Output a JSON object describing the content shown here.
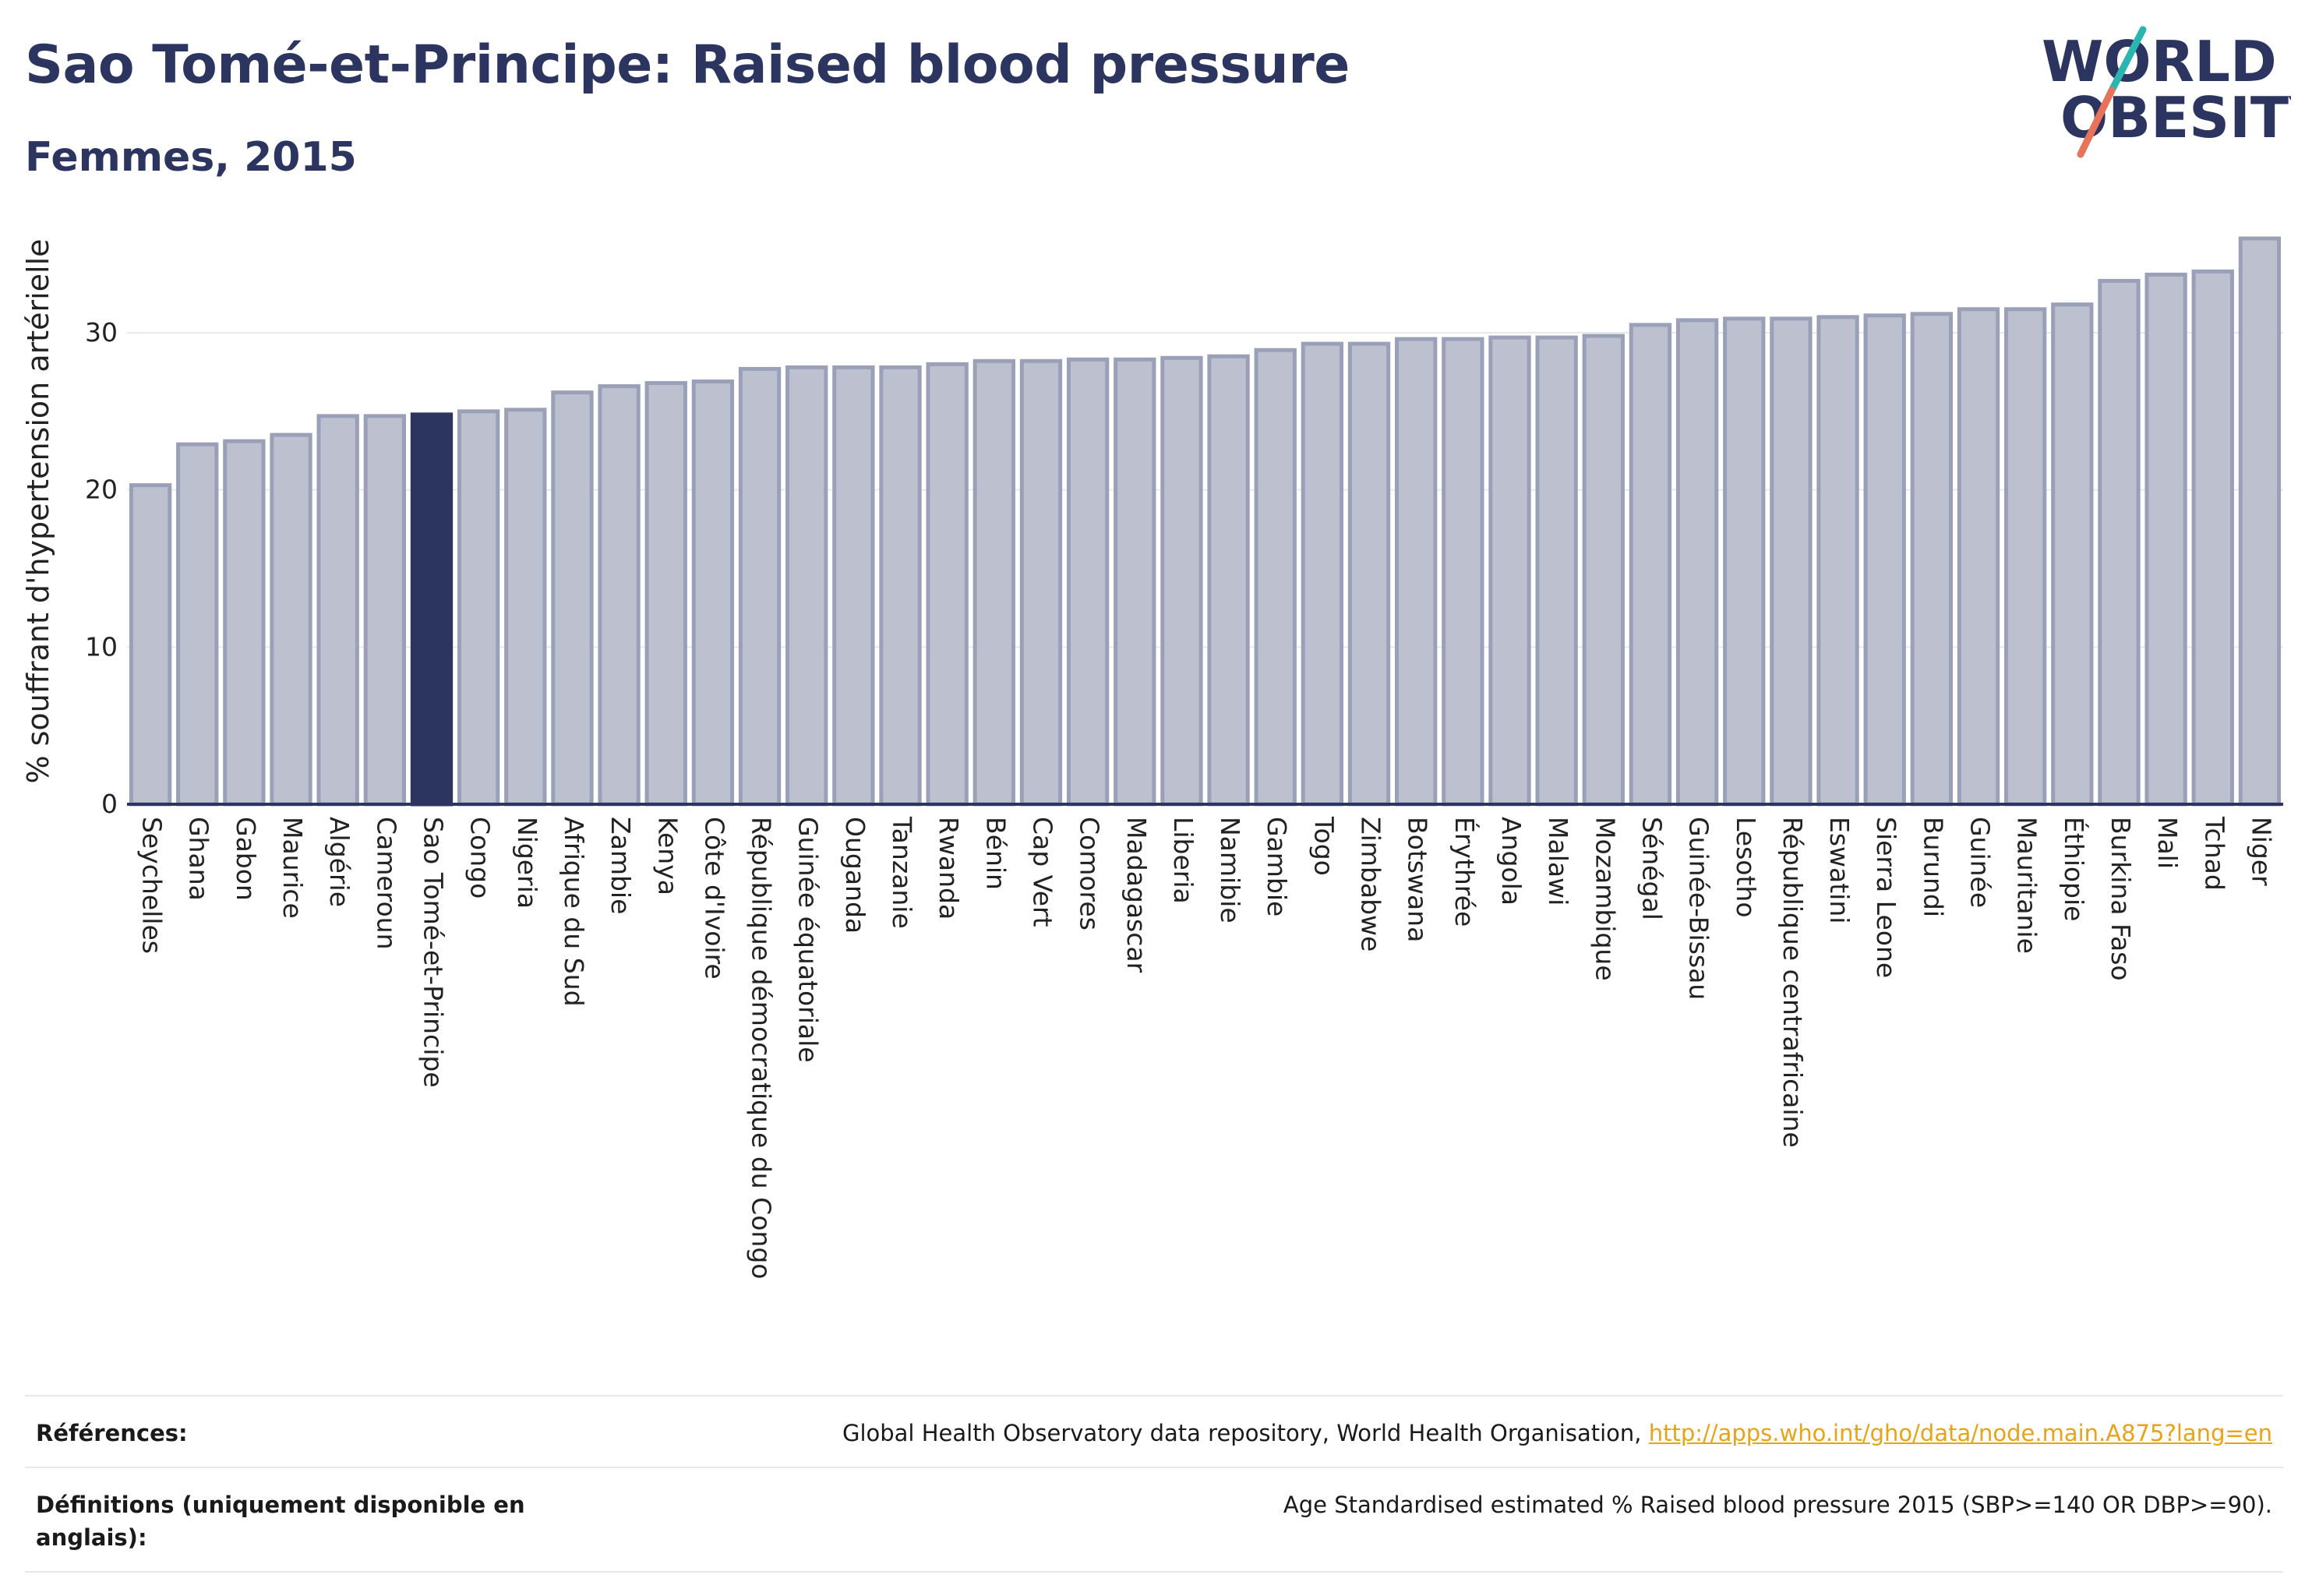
{
  "header": {
    "title": "Sao Tomé-et-Principe: Raised blood pressure",
    "subtitle": "Femmes, 2015"
  },
  "logo": {
    "line1": "WORLD",
    "line2": "OBESITY",
    "colors": {
      "text": "#2c3560",
      "slash_top": "#2bb5b0",
      "slash_bottom": "#e8735a"
    }
  },
  "colors": {
    "bar_fill": "#bcc0cf",
    "bar_stroke": "#9aa0b8",
    "highlight": "#2c3560",
    "gridline": "#e8e9ef",
    "axis": "#2c3560"
  },
  "chart_data": {
    "type": "bar",
    "ylabel": "% souffrant d'hypertension artérielle",
    "ylim": [
      0,
      36
    ],
    "yticks": [
      0,
      10,
      20,
      30
    ],
    "grid": true,
    "highlight": "Sao Tomé-et-Principe",
    "categories": [
      "Seychelles",
      "Ghana",
      "Gabon",
      "Maurice",
      "Algérie",
      "Cameroun",
      "Sao Tomé-et-Principe",
      "Congo",
      "Nigeria",
      "Afrique du Sud",
      "Zambie",
      "Kenya",
      "Côte d'Ivoire",
      "République démocratique du Congo",
      "Guinée équatoriale",
      "Ouganda",
      "Tanzanie",
      "Rwanda",
      "Bénin",
      "Cap Vert",
      "Comores",
      "Madagascar",
      "Liberia",
      "Namibie",
      "Gambie",
      "Togo",
      "Zimbabwe",
      "Botswana",
      "Érythrée",
      "Angola",
      "Malawi",
      "Mozambique",
      "Sénégal",
      "Guinée-Bissau",
      "Lesotho",
      "République centrafricaine",
      "Eswatini",
      "Sierra Leone",
      "Burundi",
      "Guinée",
      "Mauritanie",
      "Éthiopie",
      "Burkina Faso",
      "Mali",
      "Tchad",
      "Niger"
    ],
    "values": [
      20.3,
      22.9,
      23.1,
      23.5,
      24.7,
      24.7,
      24.8,
      25.0,
      25.1,
      26.2,
      26.6,
      26.8,
      26.9,
      27.7,
      27.8,
      27.8,
      27.8,
      28.0,
      28.2,
      28.2,
      28.3,
      28.3,
      28.4,
      28.5,
      28.9,
      29.3,
      29.3,
      29.6,
      29.6,
      29.7,
      29.7,
      29.8,
      30.5,
      30.8,
      30.9,
      30.9,
      31.0,
      31.1,
      31.2,
      31.5,
      31.5,
      31.8,
      33.3,
      33.7,
      33.9,
      36.0
    ]
  },
  "references": {
    "sources_label": "Références:",
    "sources_text": "Global Health Observatory data repository, World Health Organisation, ",
    "sources_link": "http://apps.who.int/gho/data/node.main.A875?lang=en",
    "definitions_label": "Définitions (uniquement disponible en anglais):",
    "definitions_text": "Age Standardised estimated % Raised blood pressure 2015 (SBP>=140 OR DBP>=90)."
  }
}
